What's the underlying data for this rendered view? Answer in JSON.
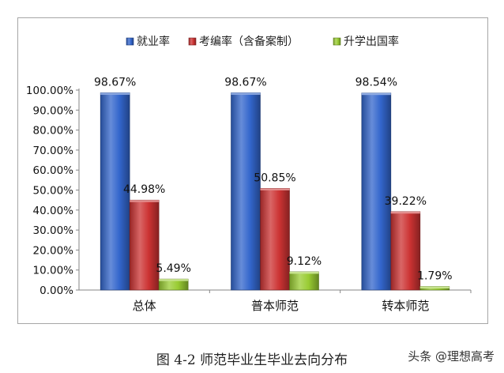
{
  "chart_data": {
    "type": "bar",
    "categories": [
      "总体",
      "普本师范",
      "转本师范"
    ],
    "series": [
      {
        "name": "就业率",
        "values": [
          98.67,
          98.67,
          98.54
        ],
        "labels": [
          "98.67%",
          "98.67%",
          "98.54%"
        ],
        "color": "#3366CC"
      },
      {
        "name": "考编率（含备案制）",
        "values": [
          44.98,
          50.85,
          39.22
        ],
        "labels": [
          "44.98%",
          "50.85%",
          "39.22%"
        ],
        "color": "#CC3333"
      },
      {
        "name": "升学出国率",
        "values": [
          5.49,
          9.12,
          1.79
        ],
        "labels": [
          "5.49%",
          "9.12%",
          "1.79%"
        ],
        "color": "#99CC33"
      }
    ],
    "ylim": [
      0,
      100
    ],
    "yticks": [
      0,
      10,
      20,
      30,
      40,
      50,
      60,
      70,
      80,
      90,
      100
    ],
    "ytick_labels": [
      "0.00%",
      "10.00%",
      "20.00%",
      "30.00%",
      "40.00%",
      "50.00%",
      "60.00%",
      "70.00%",
      "80.00%",
      "90.00%",
      "100.00%"
    ],
    "grid": false,
    "legend": "top"
  },
  "caption": "图 4-2 师范毕业生毕业去向分布",
  "watermark": "头条 @理想高考"
}
